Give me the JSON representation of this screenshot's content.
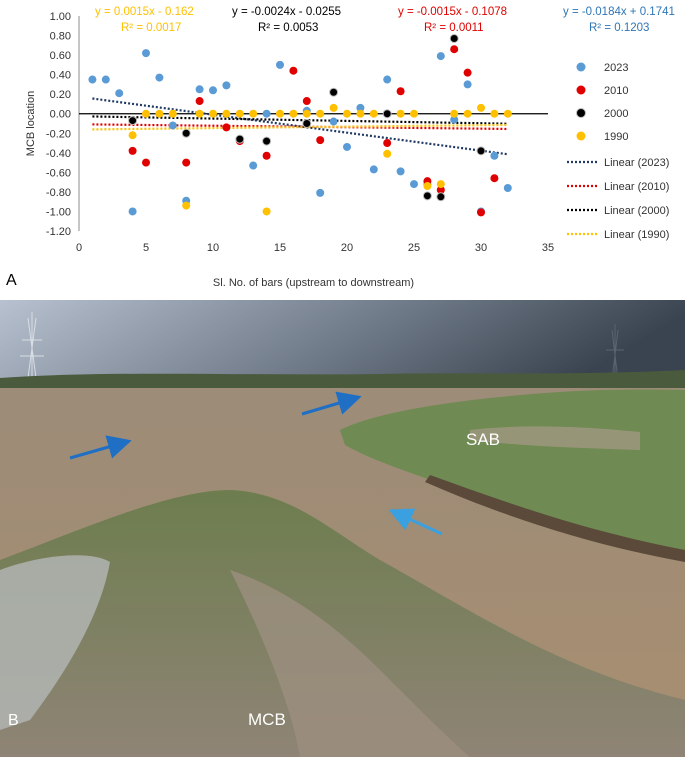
{
  "panels": {
    "a": "A",
    "b": "B"
  },
  "photo": {
    "label_sab": "SAB",
    "label_mcb": "MCB"
  },
  "colors": {
    "c2023": "#5b9bd5",
    "c2010": "#e00000",
    "c2000": "#000000",
    "c1990": "#ffc000",
    "eq2023": "#2e75b6",
    "trend2023": "#1f3864",
    "arrow": "#1f6fc5"
  },
  "chart_data": {
    "type": "scatter",
    "xlabel": "Sl. No. of bars (upstream to downstream)",
    "ylabel": "MCB  location",
    "xlim": [
      0,
      35
    ],
    "ylim": [
      -1.2,
      1.0
    ],
    "xticks": [
      "0",
      "5",
      "10",
      "15",
      "20",
      "25",
      "30",
      "35"
    ],
    "yticks": [
      "1.00",
      "0.80",
      "0.60",
      "0.40",
      "0.20",
      "0.00",
      "-0.20",
      "-0.40",
      "-0.60",
      "-0.80",
      "-1.00",
      "-1.20"
    ],
    "grid": false,
    "legend_position": "right",
    "series": [
      {
        "name": "2023",
        "color": "#5b9bd5",
        "points": [
          [
            1,
            0.35
          ],
          [
            2,
            0.35
          ],
          [
            3,
            0.21
          ],
          [
            4,
            -1.0
          ],
          [
            5,
            0.62
          ],
          [
            6,
            0.37
          ],
          [
            7,
            -0.12
          ],
          [
            8,
            -0.89
          ],
          [
            9,
            0.25
          ],
          [
            10,
            0.24
          ],
          [
            11,
            0.29
          ],
          [
            12,
            -0.27
          ],
          [
            13,
            -0.53
          ],
          [
            14,
            0.0
          ],
          [
            15,
            0.5
          ],
          [
            17,
            0.03
          ],
          [
            18,
            -0.81
          ],
          [
            19,
            -0.08
          ],
          [
            20,
            -0.34
          ],
          [
            21,
            0.06
          ],
          [
            22,
            -0.57
          ],
          [
            23,
            0.35
          ],
          [
            24,
            -0.59
          ],
          [
            25,
            -0.72
          ],
          [
            26,
            -0.72
          ],
          [
            27,
            0.59
          ],
          [
            28,
            -0.06
          ],
          [
            29,
            0.3
          ],
          [
            30,
            -1.0
          ],
          [
            31,
            -0.43
          ],
          [
            32,
            -0.76
          ]
        ]
      },
      {
        "name": "2010",
        "color": "#e00000",
        "points": [
          [
            4,
            -0.38
          ],
          [
            5,
            -0.5
          ],
          [
            8,
            -0.5
          ],
          [
            9,
            0.13
          ],
          [
            11,
            -0.14
          ],
          [
            12,
            -0.28
          ],
          [
            14,
            -0.43
          ],
          [
            16,
            0.44
          ],
          [
            17,
            0.13
          ],
          [
            18,
            -0.27
          ],
          [
            23,
            -0.3
          ],
          [
            24,
            0.23
          ],
          [
            26,
            -0.69
          ],
          [
            27,
            -0.78
          ],
          [
            28,
            0.66
          ],
          [
            29,
            0.42
          ],
          [
            30,
            -1.01
          ],
          [
            31,
            -0.66
          ]
        ]
      },
      {
        "name": "2000",
        "color": "#000000",
        "points": [
          [
            4,
            -0.07
          ],
          [
            8,
            -0.2
          ],
          [
            12,
            -0.26
          ],
          [
            14,
            -0.28
          ],
          [
            17,
            -0.1
          ],
          [
            19,
            0.22
          ],
          [
            23,
            0.0
          ],
          [
            26,
            -0.84
          ],
          [
            27,
            -0.85
          ],
          [
            28,
            0.77
          ],
          [
            30,
            -0.38
          ]
        ]
      },
      {
        "name": "1990",
        "color": "#ffc000",
        "points": [
          [
            4,
            -0.22
          ],
          [
            5,
            0.0
          ],
          [
            6,
            0.0
          ],
          [
            7,
            0.0
          ],
          [
            8,
            -0.94
          ],
          [
            9,
            0.0
          ],
          [
            10,
            0.0
          ],
          [
            11,
            0.0
          ],
          [
            12,
            0.0
          ],
          [
            13,
            0.0
          ],
          [
            14,
            -1.0
          ],
          [
            15,
            0.0
          ],
          [
            16,
            0.0
          ],
          [
            17,
            0.0
          ],
          [
            18,
            0.0
          ],
          [
            19,
            0.06
          ],
          [
            20,
            0.0
          ],
          [
            21,
            0.0
          ],
          [
            22,
            0.0
          ],
          [
            23,
            -0.41
          ],
          [
            24,
            0.0
          ],
          [
            25,
            0.0
          ],
          [
            26,
            -0.74
          ],
          [
            27,
            -0.72
          ],
          [
            28,
            0.0
          ],
          [
            29,
            0.0
          ],
          [
            30,
            0.06
          ],
          [
            31,
            0.0
          ],
          [
            32,
            0.0
          ]
        ]
      }
    ],
    "trendlines": [
      {
        "name": "Linear (2023)",
        "color": "#1f3864",
        "slope": -0.0184,
        "intercept": 0.1741,
        "x_range": [
          1,
          32
        ]
      },
      {
        "name": "Linear (2010)",
        "color": "#e00000",
        "slope": -0.0015,
        "intercept": -0.1078,
        "x_range": [
          1,
          32
        ]
      },
      {
        "name": "Linear (2000)",
        "color": "#000000",
        "slope": -0.0024,
        "intercept": -0.0255,
        "x_range": [
          1,
          32
        ]
      },
      {
        "name": "Linear (1990)",
        "color": "#ffc000",
        "slope": 0.0015,
        "intercept": -0.162,
        "x_range": [
          1,
          32
        ]
      }
    ],
    "equations": [
      {
        "series": "1990",
        "color": "#ffc000",
        "eq": "y = 0.0015x - 0.162",
        "r2": "R² = 0.0017"
      },
      {
        "series": "2000",
        "color": "#000000",
        "eq": "y = -0.0024x - 0.0255",
        "r2": "R² = 0.0053"
      },
      {
        "series": "2010",
        "color": "#e00000",
        "eq": "y = -0.0015x - 0.1078",
        "r2": "R² = 0.0011"
      },
      {
        "series": "2023",
        "color": "#2e75b6",
        "eq": "y = -0.0184x + 0.1741",
        "r2": "R² = 0.1203"
      }
    ]
  }
}
